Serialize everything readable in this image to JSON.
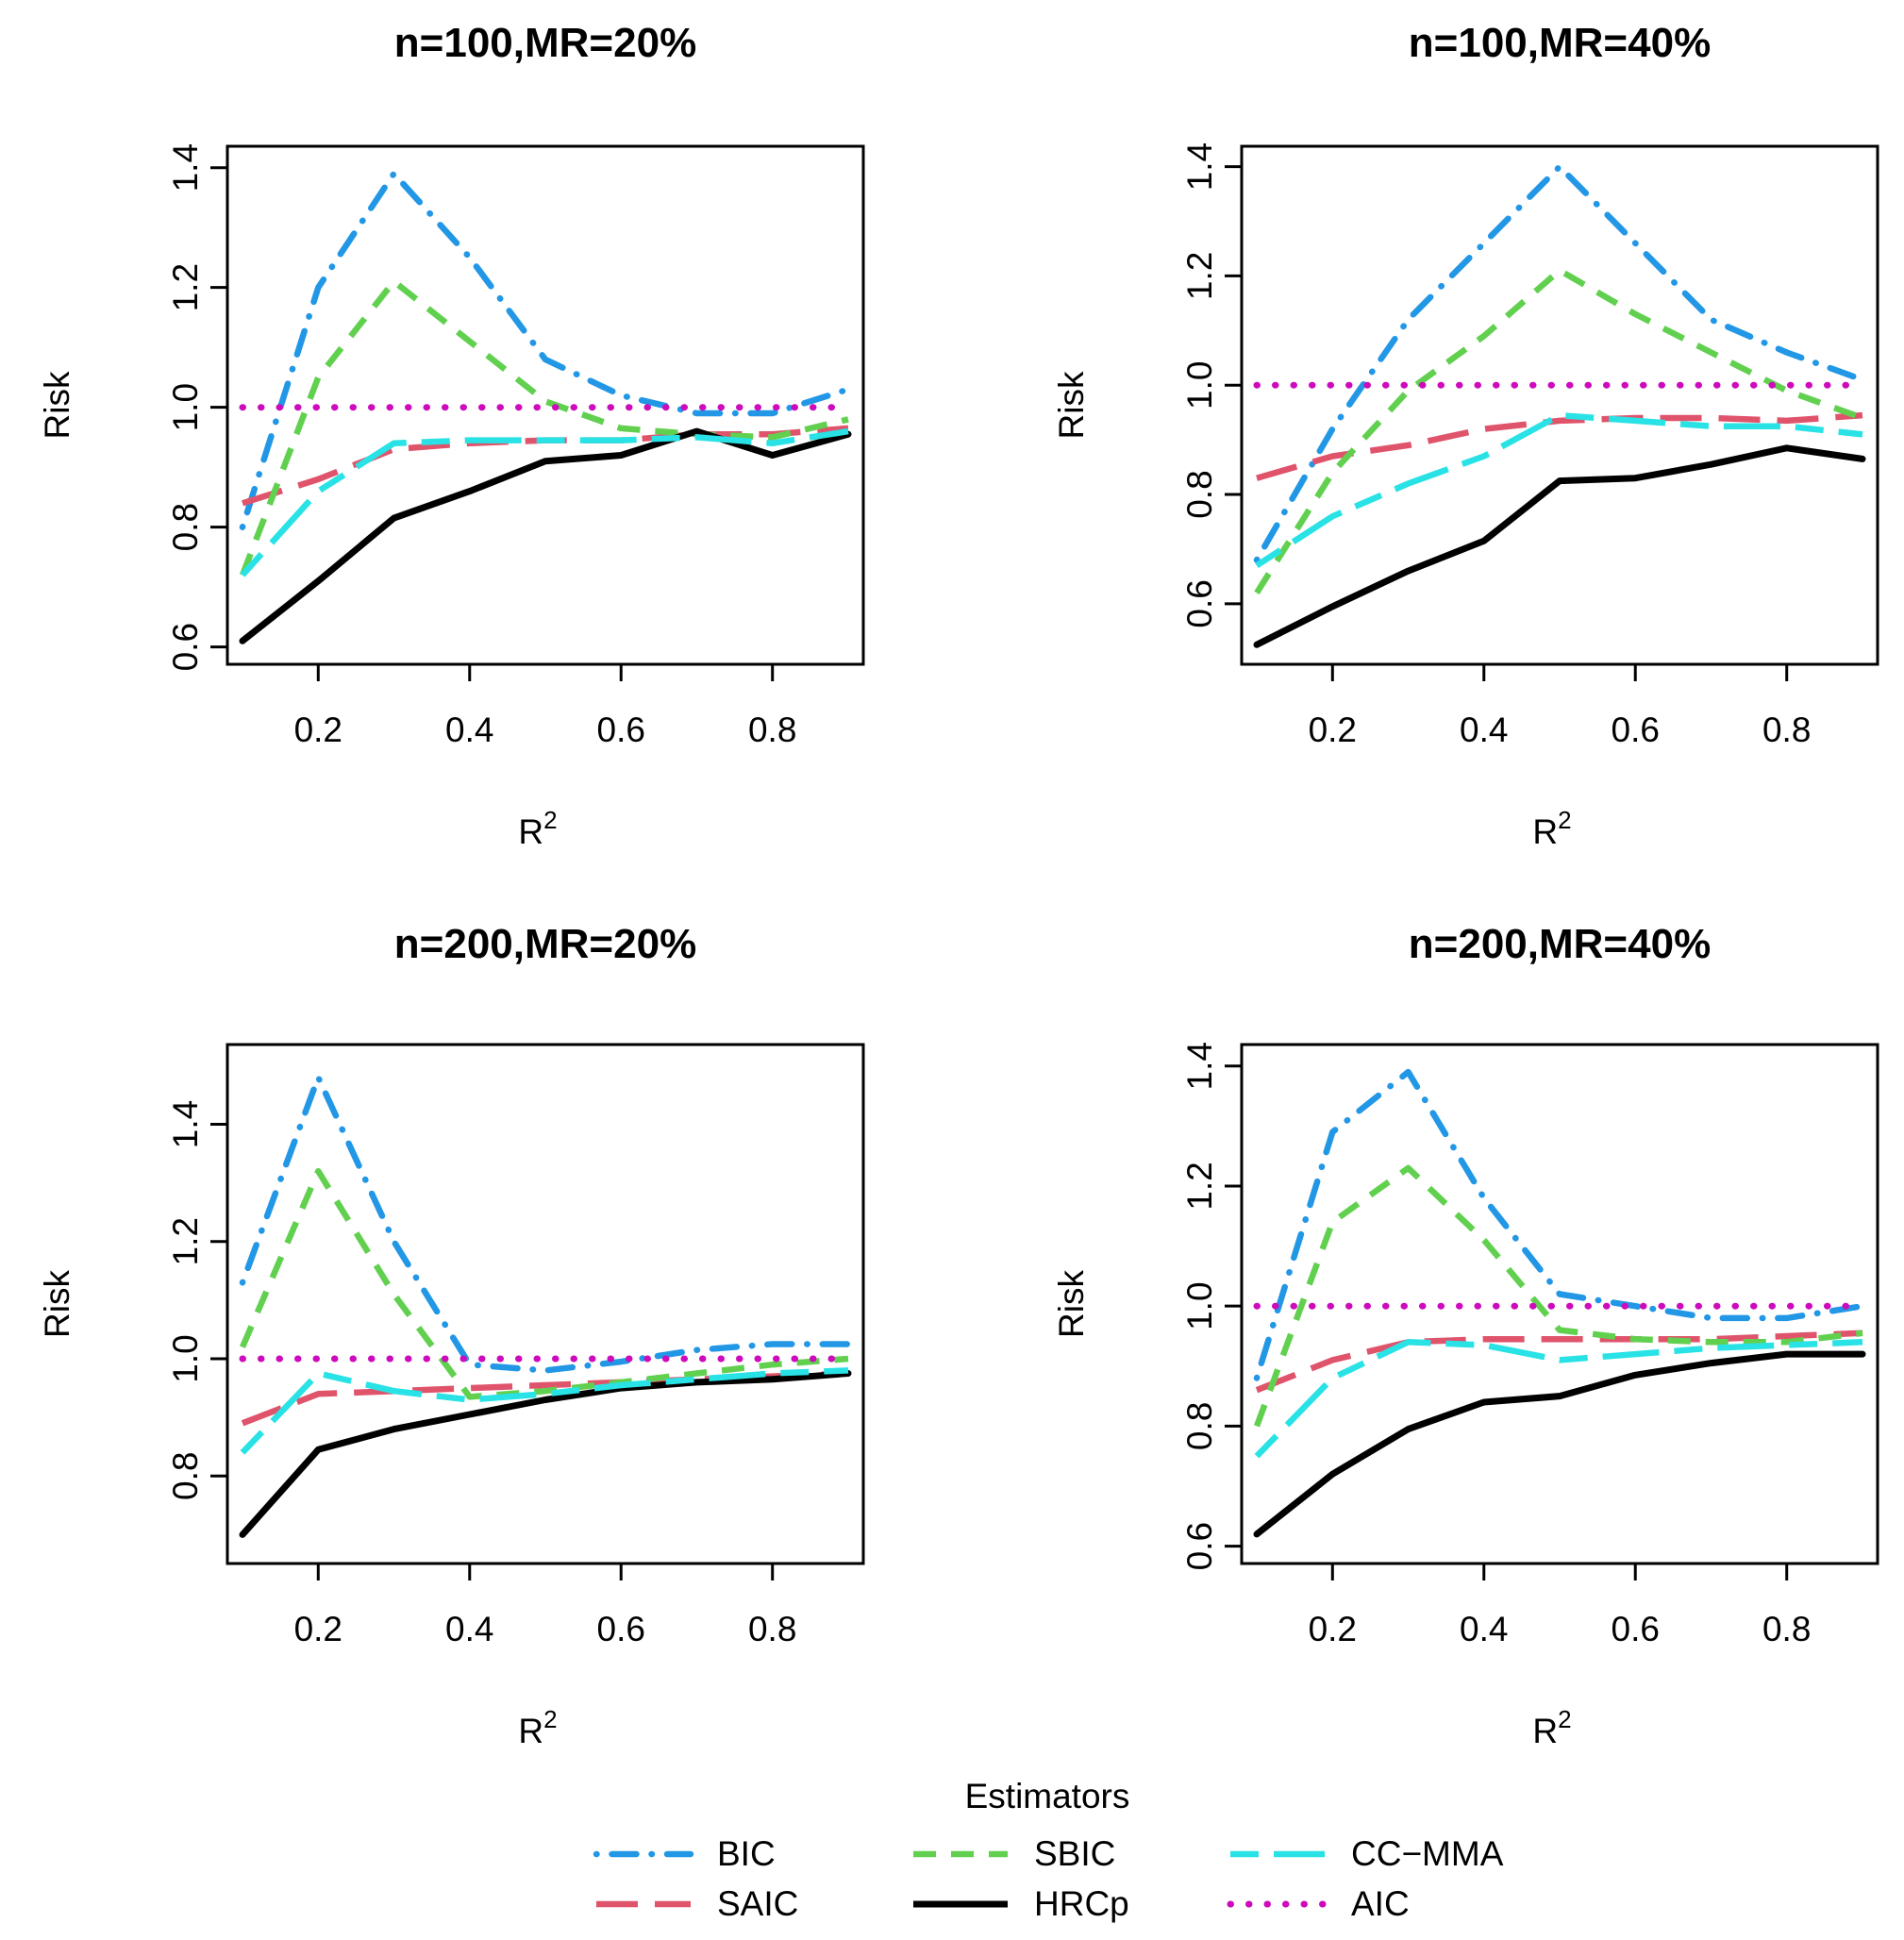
{
  "chart_data": {
    "legend_title": "Estimators",
    "x_label": "R",
    "x_label_sup": "2",
    "y_label": "Risk",
    "series_styles": [
      {
        "name": "BIC",
        "color": "#2297E6",
        "dash": "dotdash"
      },
      {
        "name": "SAIC",
        "color": "#DF536B",
        "dash": "longdash"
      },
      {
        "name": "SBIC",
        "color": "#61D04F",
        "dash": "dashed"
      },
      {
        "name": "HRCp",
        "color": "#000000",
        "dash": "solid"
      },
      {
        "name": "CC−MMA",
        "color": "#28E2E5",
        "dash": "twodash"
      },
      {
        "name": "AIC",
        "color": "#CD0BBC",
        "dash": "dotted"
      }
    ],
    "panels": [
      {
        "type": "line",
        "title": "n=100,MR=20%",
        "x": [
          0.1,
          0.2,
          0.3,
          0.4,
          0.5,
          0.6,
          0.7,
          0.8,
          0.9
        ],
        "x_ticks": [
          "0.2",
          "0.4",
          "0.6",
          "0.8"
        ],
        "y_ticks": [
          "0.6",
          "0.8",
          "1.0",
          "1.2",
          "1.4"
        ],
        "ylim": [
          0.59,
          1.42
        ],
        "series": [
          {
            "name": "BIC",
            "values": [
              0.8,
              1.2,
              1.39,
              1.25,
              1.08,
              1.02,
              0.99,
              0.99,
              1.03
            ]
          },
          {
            "name": "SAIC",
            "values": [
              0.84,
              0.88,
              0.93,
              0.94,
              0.945,
              0.945,
              0.955,
              0.955,
              0.965
            ]
          },
          {
            "name": "SBIC",
            "values": [
              0.72,
              1.05,
              1.21,
              1.11,
              1.01,
              0.965,
              0.955,
              0.95,
              0.98
            ]
          },
          {
            "name": "HRCp",
            "values": [
              0.61,
              0.71,
              0.815,
              0.86,
              0.91,
              0.92,
              0.96,
              0.92,
              0.955
            ]
          },
          {
            "name": "CC−MMA",
            "values": [
              0.72,
              0.86,
              0.94,
              0.945,
              0.945,
              0.945,
              0.95,
              0.94,
              0.96
            ]
          },
          {
            "name": "AIC",
            "values": [
              1.0,
              1.0,
              1.0,
              1.0,
              1.0,
              1.0,
              1.0,
              1.0,
              1.0
            ]
          }
        ]
      },
      {
        "type": "line",
        "title": "n=100,MR=40%",
        "x": [
          0.1,
          0.2,
          0.3,
          0.4,
          0.5,
          0.6,
          0.7,
          0.8,
          0.9
        ],
        "x_ticks": [
          "0.2",
          "0.4",
          "0.6",
          "0.8"
        ],
        "y_ticks": [
          "0.6",
          "0.8",
          "1.0",
          "1.2",
          "1.4"
        ],
        "ylim": [
          0.51,
          1.42
        ],
        "series": [
          {
            "name": "BIC",
            "values": [
              0.68,
              0.92,
              1.12,
              1.26,
              1.4,
              1.26,
              1.12,
              1.06,
              1.01
            ]
          },
          {
            "name": "SAIC",
            "values": [
              0.83,
              0.87,
              0.89,
              0.92,
              0.935,
              0.94,
              0.94,
              0.935,
              0.945
            ]
          },
          {
            "name": "SBIC",
            "values": [
              0.62,
              0.84,
              0.99,
              1.09,
              1.21,
              1.13,
              1.06,
              0.99,
              0.94
            ]
          },
          {
            "name": "HRCp",
            "values": [
              0.525,
              0.595,
              0.66,
              0.715,
              0.825,
              0.83,
              0.855,
              0.885,
              0.865
            ]
          },
          {
            "name": "CC−MMA",
            "values": [
              0.67,
              0.76,
              0.82,
              0.87,
              0.945,
              0.935,
              0.925,
              0.925,
              0.91
            ]
          },
          {
            "name": "AIC",
            "values": [
              1.0,
              1.0,
              1.0,
              1.0,
              1.0,
              1.0,
              1.0,
              1.0,
              1.0
            ]
          }
        ]
      },
      {
        "type": "line",
        "title": "n=200,MR=20%",
        "x": [
          0.1,
          0.2,
          0.3,
          0.4,
          0.5,
          0.6,
          0.7,
          0.8,
          0.9
        ],
        "x_ticks": [
          "0.2",
          "0.4",
          "0.6",
          "0.8"
        ],
        "y_ticks": [
          "0.8",
          "1.0",
          "1.2",
          "1.4"
        ],
        "ylim": [
          0.67,
          1.52
        ],
        "series": [
          {
            "name": "BIC",
            "values": [
              1.13,
              1.48,
              1.2,
              0.99,
              0.98,
              0.995,
              1.015,
              1.025,
              1.025
            ]
          },
          {
            "name": "SAIC",
            "values": [
              0.89,
              0.94,
              0.945,
              0.95,
              0.955,
              0.96,
              0.965,
              0.97,
              0.975
            ]
          },
          {
            "name": "SBIC",
            "values": [
              1.02,
              1.32,
              1.11,
              0.935,
              0.945,
              0.96,
              0.975,
              0.99,
              1.0
            ]
          },
          {
            "name": "HRCp",
            "values": [
              0.7,
              0.845,
              0.88,
              0.905,
              0.93,
              0.95,
              0.96,
              0.965,
              0.975
            ]
          },
          {
            "name": "CC−MMA",
            "values": [
              0.84,
              0.975,
              0.945,
              0.93,
              0.94,
              0.955,
              0.965,
              0.975,
              0.98
            ]
          },
          {
            "name": "AIC",
            "values": [
              1.0,
              1.0,
              1.0,
              1.0,
              1.0,
              1.0,
              1.0,
              1.0,
              1.0
            ]
          }
        ]
      },
      {
        "type": "line",
        "title": "n=200,MR=40%",
        "x": [
          0.1,
          0.2,
          0.3,
          0.4,
          0.5,
          0.6,
          0.7,
          0.8,
          0.9
        ],
        "x_ticks": [
          "0.2",
          "0.4",
          "0.6",
          "0.8"
        ],
        "y_ticks": [
          "0.6",
          "0.8",
          "1.0",
          "1.2",
          "1.4"
        ],
        "ylim": [
          0.59,
          1.42
        ],
        "series": [
          {
            "name": "BIC",
            "values": [
              0.88,
              1.29,
              1.39,
              1.18,
              1.02,
              1.0,
              0.98,
              0.98,
              1.0
            ]
          },
          {
            "name": "SAIC",
            "values": [
              0.86,
              0.91,
              0.94,
              0.945,
              0.945,
              0.945,
              0.945,
              0.95,
              0.955
            ]
          },
          {
            "name": "SBIC",
            "values": [
              0.8,
              1.14,
              1.23,
              1.11,
              0.96,
              0.945,
              0.94,
              0.94,
              0.955
            ]
          },
          {
            "name": "HRCp",
            "values": [
              0.62,
              0.72,
              0.795,
              0.84,
              0.85,
              0.885,
              0.905,
              0.92,
              0.92
            ]
          },
          {
            "name": "CC−MMA",
            "values": [
              0.75,
              0.88,
              0.94,
              0.935,
              0.91,
              0.92,
              0.93,
              0.935,
              0.94
            ]
          },
          {
            "name": "AIC",
            "values": [
              1.0,
              1.0,
              1.0,
              1.0,
              1.0,
              1.0,
              1.0,
              1.0,
              1.0
            ]
          }
        ]
      }
    ]
  }
}
